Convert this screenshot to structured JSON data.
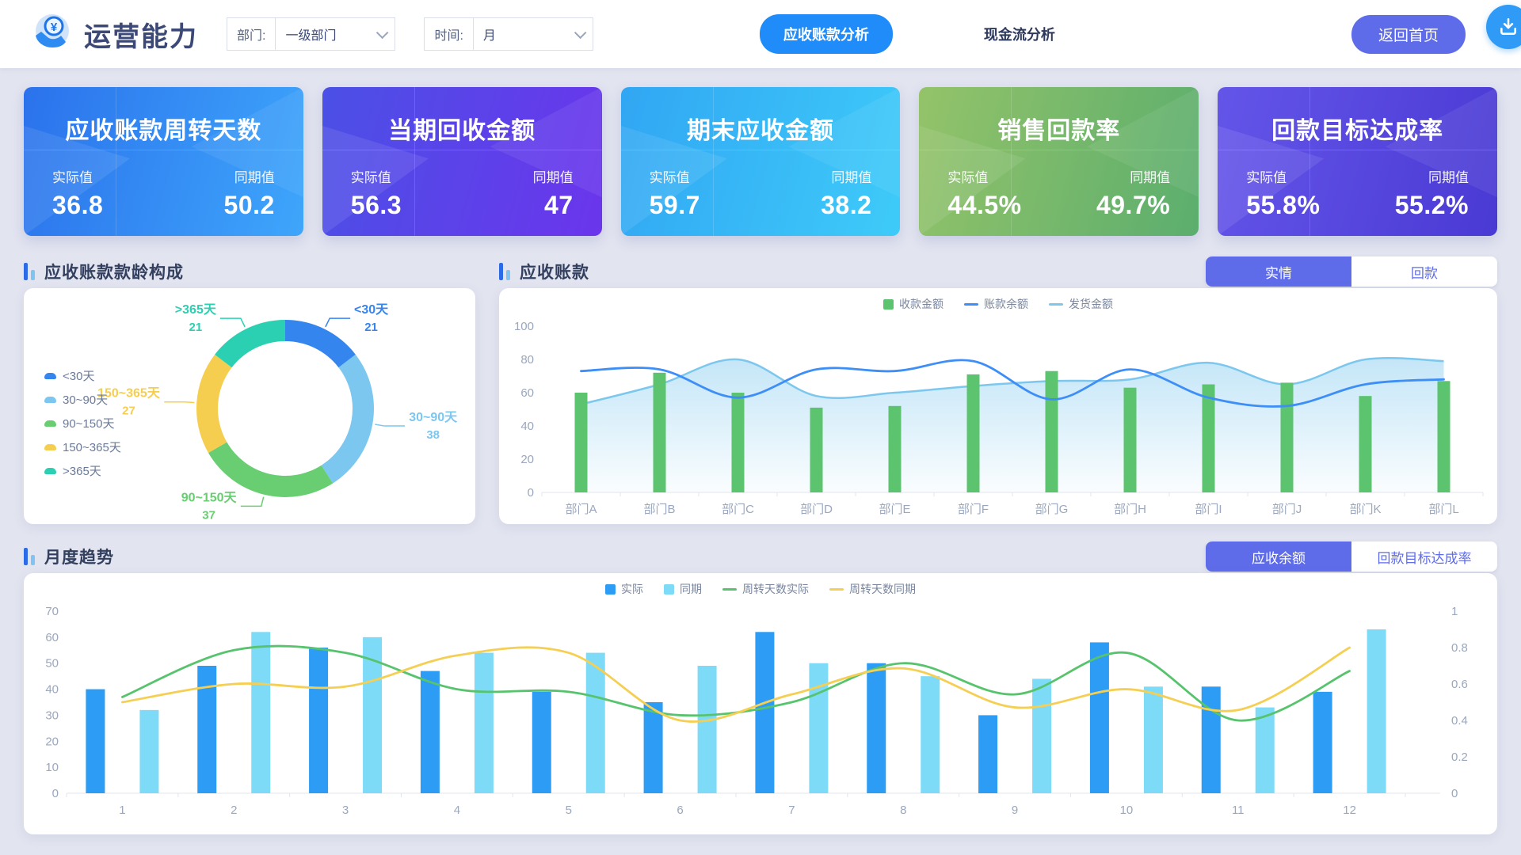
{
  "theme": {
    "page_bg": "#E2E4F0",
    "accent_blue": "#1F8CF9",
    "accent_indigo": "#5F6CEA",
    "axis_text": "#9AA7BD"
  },
  "header": {
    "app_title": "运营能力",
    "filters": {
      "department_label": "部门:",
      "department_value": "一级部门",
      "time_label": "时间:",
      "time_value": "月"
    },
    "nav": {
      "receivable_analysis": "应收账款分析",
      "cashflow_analysis": "现金流分析"
    },
    "back_button": "返回首页",
    "download_icon": "download-icon"
  },
  "kpis": [
    {
      "title": "应收账款周转天数",
      "actual_label": "实际值",
      "actual": "36.8",
      "prev_label": "同期值",
      "prev": "50.2",
      "color_from": "#2B72EC",
      "color_to": "#3EA6FB"
    },
    {
      "title": "当期回收金额",
      "actual_label": "实际值",
      "actual": "56.3",
      "prev_label": "同期值",
      "prev": "47",
      "color_from": "#4B50E6",
      "color_to": "#6B35EC"
    },
    {
      "title": "期末应收金额",
      "actual_label": "实际值",
      "actual": "59.7",
      "prev_label": "同期值",
      "prev": "38.2",
      "color_from": "#31A6F3",
      "color_to": "#3ECBF9"
    },
    {
      "title": "销售回款率",
      "actual_label": "实际值",
      "actual": "44.5%",
      "prev_label": "同期值",
      "prev": "49.7%",
      "color_from": "#94C369",
      "color_to": "#5BAE6E"
    },
    {
      "title": "回款目标达成率",
      "actual_label": "实际值",
      "actual": "55.8%",
      "prev_label": "同期值",
      "prev": "55.2%",
      "color_from": "#6455E9",
      "color_to": "#4A3AD4"
    }
  ],
  "sections": {
    "aging": {
      "title": "应收账款款龄构成"
    },
    "receivable": {
      "title": "应收账款",
      "tabs": [
        {
          "label": "实情",
          "active": true
        },
        {
          "label": "回款",
          "active": false
        }
      ]
    },
    "monthly": {
      "title": "月度趋势",
      "tabs": [
        {
          "label": "应收余额",
          "active": true
        },
        {
          "label": "回款目标达成率",
          "active": false
        }
      ]
    }
  },
  "chart_data": [
    {
      "id": "aging_donut",
      "type": "pie",
      "title": "应收账款款龄构成",
      "labels": [
        "<30天",
        "30~90天",
        "90~150天",
        "150~365天",
        ">365天"
      ],
      "values": [
        21,
        38,
        37,
        27,
        21
      ],
      "colors": [
        "#3585EF",
        "#7CC7F0",
        "#68CE71",
        "#F6CE4F",
        "#2BD0B2"
      ],
      "donut": true,
      "legend_position": "left"
    },
    {
      "id": "receivable_combo",
      "type": "bar",
      "categories": [
        "部门A",
        "部门B",
        "部门C",
        "部门D",
        "部门E",
        "部门F",
        "部门G",
        "部门H",
        "部门I",
        "部门J",
        "部门K",
        "部门L"
      ],
      "series": [
        {
          "name": "收款金额",
          "kind": "bar",
          "color": "#5CC46E",
          "values": [
            60,
            72,
            60,
            51,
            52,
            71,
            73,
            63,
            65,
            66,
            58,
            67
          ]
        },
        {
          "name": "账款余额",
          "kind": "line",
          "color": "#3E8EF7",
          "values": [
            73,
            74,
            57,
            74,
            73,
            79,
            56,
            74,
            57,
            52,
            65,
            68
          ]
        },
        {
          "name": "发货金额",
          "kind": "area",
          "color": "#7CC7EE",
          "values": [
            53,
            65,
            80,
            58,
            60,
            64,
            67,
            68,
            78,
            65,
            80,
            79
          ]
        }
      ],
      "ylim": [
        0,
        100
      ],
      "yticks": [
        0,
        20,
        40,
        60,
        80,
        100
      ],
      "grid": false,
      "legend_position": "top"
    },
    {
      "id": "monthly_trend",
      "type": "bar",
      "categories": [
        "1",
        "2",
        "3",
        "4",
        "5",
        "6",
        "7",
        "8",
        "9",
        "10",
        "11",
        "12"
      ],
      "series": [
        {
          "name": "实际",
          "kind": "bar",
          "color": "#2D9CF4",
          "values": [
            40,
            49,
            56,
            47,
            39,
            35,
            62,
            50,
            30,
            58,
            41,
            39
          ]
        },
        {
          "name": "同期",
          "kind": "bar",
          "color": "#7EDBF8",
          "values": [
            32,
            62,
            60,
            54,
            54,
            49,
            50,
            45,
            44,
            41,
            33,
            63
          ]
        },
        {
          "name": "周转天数实际",
          "kind": "line",
          "color": "#57C46D",
          "values": [
            37,
            55,
            54,
            40,
            39,
            30,
            35,
            50,
            38,
            54,
            28,
            47
          ]
        },
        {
          "name": "周转天数同期",
          "kind": "line",
          "color": "#F5CF53",
          "values": [
            35,
            42,
            41,
            53,
            54,
            28,
            38,
            48,
            33,
            40,
            32,
            56
          ]
        }
      ],
      "ylim": [
        0,
        70
      ],
      "yticks": [
        0,
        10,
        20,
        30,
        40,
        50,
        60,
        70
      ],
      "y2lim": [
        0,
        1
      ],
      "y2ticks": [
        0,
        0.2,
        0.4,
        0.6,
        0.8,
        1
      ],
      "grid": false,
      "legend_position": "top"
    }
  ]
}
